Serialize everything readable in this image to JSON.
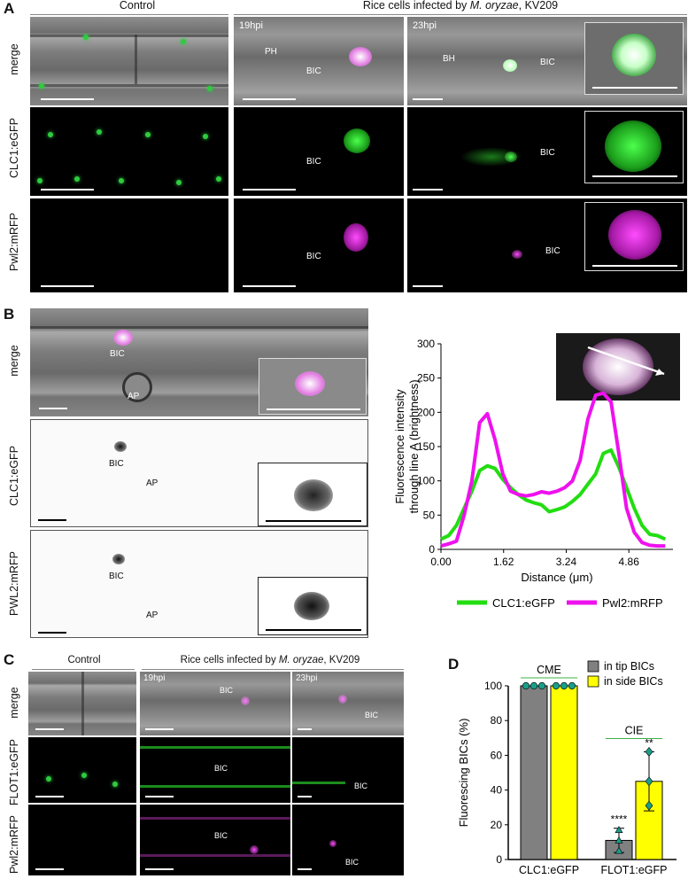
{
  "panelA": {
    "letter": "A",
    "header_control": "Control",
    "header_infected_prefix": "Rice cells infected by ",
    "header_infected_species": "M. oryzae",
    "header_infected_suffix": ", KV209",
    "time1": "19hpi",
    "time2": "23hpi",
    "rows": [
      "merge",
      "CLC1:eGFP",
      "Pwl2:mRFP"
    ],
    "labels": {
      "ph": "PH",
      "bh": "BH",
      "bic": "BIC"
    }
  },
  "panelB": {
    "letter": "B",
    "rows": [
      "merge",
      "CLC1:eGFP",
      "PWL2:mRFP"
    ],
    "labels": {
      "bic": "BIC",
      "ap": "AP"
    }
  },
  "panelC": {
    "letter": "C",
    "header_control": "Control",
    "header_infected_prefix": "Rice cells infected by ",
    "header_infected_species": "M. oryzae",
    "header_infected_suffix": ", KV209",
    "time1": "19hpi",
    "time2": "23hpi",
    "rows": [
      "merge",
      "FLOT1:eGFP",
      "Pwl2:mRFP"
    ],
    "labels": {
      "bic": "BIC"
    }
  },
  "chart_data": [
    {
      "type": "line",
      "panel": "B",
      "title": "",
      "xlabel": "Distance (μm)",
      "ylabel": "Fluorescence intensity through line A (brightness)",
      "ylabel_line1": "Fluorescence intensity",
      "ylabel_line2": "through line A (brightness)",
      "xlim": [
        0,
        6.0
      ],
      "ylim": [
        0,
        300
      ],
      "xticks": [
        "0.00",
        "1.62",
        "3.24",
        "4.86"
      ],
      "xtick_values": [
        0.0,
        1.62,
        3.24,
        4.86
      ],
      "yticks": [
        "0",
        "50",
        "100",
        "150",
        "200",
        "250",
        "300"
      ],
      "legend_position": "bottom",
      "series": [
        {
          "name": "CLC1:eGFP",
          "color": "#22dd11",
          "x": [
            0.0,
            0.2,
            0.4,
            0.6,
            0.8,
            1.0,
            1.2,
            1.4,
            1.6,
            1.8,
            2.0,
            2.2,
            2.4,
            2.6,
            2.8,
            3.0,
            3.2,
            3.4,
            3.6,
            3.8,
            4.0,
            4.2,
            4.4,
            4.6,
            4.8,
            5.0,
            5.2,
            5.4,
            5.6,
            5.8
          ],
          "y": [
            15,
            20,
            35,
            60,
            85,
            115,
            122,
            118,
            102,
            90,
            80,
            72,
            68,
            65,
            55,
            58,
            62,
            70,
            80,
            95,
            110,
            140,
            145,
            120,
            90,
            60,
            35,
            22,
            20,
            15
          ]
        },
        {
          "name": "Pwl2:mRFP",
          "color": "#ee11ee",
          "x": [
            0.0,
            0.2,
            0.4,
            0.6,
            0.8,
            1.0,
            1.2,
            1.4,
            1.6,
            1.8,
            2.0,
            2.2,
            2.4,
            2.6,
            2.8,
            3.0,
            3.2,
            3.4,
            3.6,
            3.8,
            4.0,
            4.2,
            4.4,
            4.6,
            4.8,
            5.0,
            5.2,
            5.4,
            5.6,
            5.8
          ],
          "y": [
            5,
            8,
            12,
            50,
            100,
            185,
            198,
            160,
            110,
            85,
            80,
            78,
            80,
            84,
            82,
            85,
            90,
            100,
            130,
            190,
            225,
            228,
            215,
            140,
            60,
            25,
            10,
            6,
            5,
            5
          ]
        }
      ]
    },
    {
      "type": "bar",
      "panel": "D",
      "title": "",
      "ylabel": "Fluorescing BICs (%)",
      "xlabel": "",
      "categories": [
        "CLC1:eGFP",
        "FLOT1:eGFP"
      ],
      "ylim": [
        0,
        100
      ],
      "yticks": [
        "0",
        "20",
        "40",
        "60",
        "80",
        "100"
      ],
      "group_labels": [
        "CME",
        "CIE"
      ],
      "legend_position": "top-right",
      "series": [
        {
          "name": "in tip BICs",
          "color": "#808080",
          "values": [
            100,
            11
          ],
          "err": [
            0,
            7
          ],
          "points": [
            [
              100,
              100,
              100
            ],
            [
              5,
              11,
              17
            ]
          ]
        },
        {
          "name": "in side BICs",
          "color": "#ffff00",
          "values": [
            100,
            45
          ],
          "err": [
            0,
            17
          ],
          "points": [
            [
              100,
              100,
              100
            ],
            [
              31,
              45,
              62
            ]
          ]
        }
      ],
      "significance": [
        "",
        "",
        "****",
        "**"
      ]
    }
  ]
}
